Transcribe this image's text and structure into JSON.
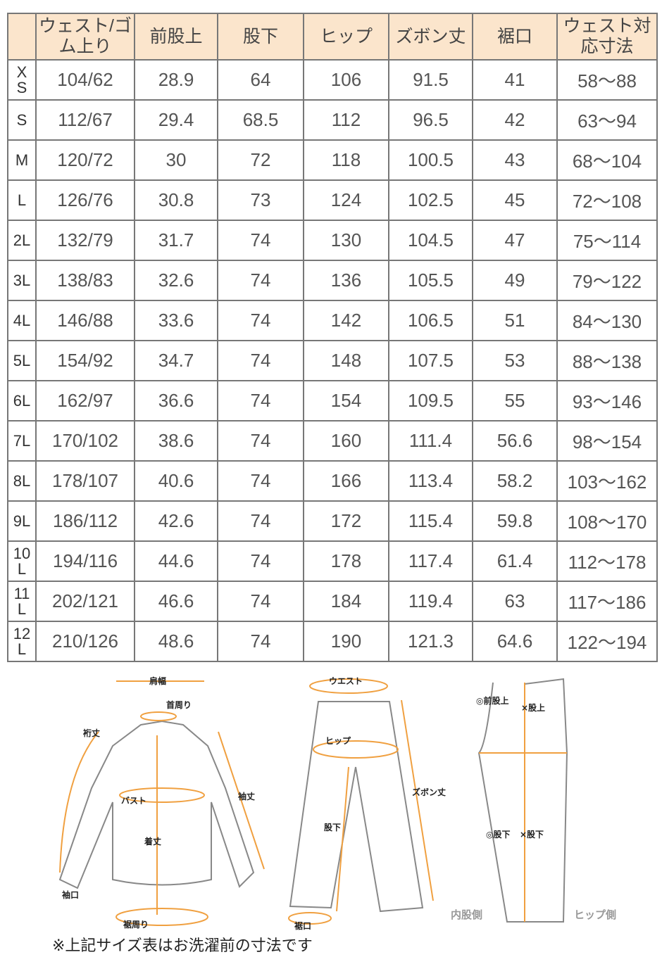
{
  "table": {
    "headers": [
      "",
      "ウェスト/ゴム上り",
      "前股上",
      "股下",
      "ヒップ",
      "ズボン丈",
      "裾口",
      "ウェスト対応寸法"
    ],
    "rows": [
      [
        "XS",
        "104/62",
        "28.9",
        "64",
        "106",
        "91.5",
        "41",
        "58〜88"
      ],
      [
        "S",
        "112/67",
        "29.4",
        "68.5",
        "112",
        "96.5",
        "42",
        "63〜94"
      ],
      [
        "M",
        "120/72",
        "30",
        "72",
        "118",
        "100.5",
        "43",
        "68〜104"
      ],
      [
        "L",
        "126/76",
        "30.8",
        "73",
        "124",
        "102.5",
        "45",
        "72〜108"
      ],
      [
        "2L",
        "132/79",
        "31.7",
        "74",
        "130",
        "104.5",
        "47",
        "75〜114"
      ],
      [
        "3L",
        "138/83",
        "32.6",
        "74",
        "136",
        "105.5",
        "49",
        "79〜122"
      ],
      [
        "4L",
        "146/88",
        "33.6",
        "74",
        "142",
        "106.5",
        "51",
        "84〜130"
      ],
      [
        "5L",
        "154/92",
        "34.7",
        "74",
        "148",
        "107.5",
        "53",
        "88〜138"
      ],
      [
        "6L",
        "162/97",
        "36.6",
        "74",
        "154",
        "109.5",
        "55",
        "93〜146"
      ],
      [
        "7L",
        "170/102",
        "38.6",
        "74",
        "160",
        "111.4",
        "56.6",
        "98〜154"
      ],
      [
        "8L",
        "178/107",
        "40.6",
        "74",
        "166",
        "113.4",
        "58.2",
        "103〜162"
      ],
      [
        "9L",
        "186/112",
        "42.6",
        "74",
        "172",
        "115.4",
        "59.8",
        "108〜170"
      ],
      [
        "10L",
        "194/116",
        "44.6",
        "74",
        "178",
        "117.4",
        "61.4",
        "112〜178"
      ],
      [
        "11L",
        "202/121",
        "46.6",
        "74",
        "184",
        "119.4",
        "63",
        "117〜186"
      ],
      [
        "12L",
        "210/126",
        "48.6",
        "74",
        "190",
        "121.3",
        "64.6",
        "122〜194"
      ]
    ]
  },
  "diagram": {
    "shirt": {
      "shoulder": "肩幅",
      "neck": "首周り",
      "yuki": "裄丈",
      "sleeve": "袖丈",
      "bust": "バスト",
      "length": "着丈",
      "cuff": "袖口",
      "hem": "裾周り"
    },
    "pants": {
      "waist": "ウエスト",
      "hip": "ヒップ",
      "inseam": "股下",
      "length": "ズボン丈",
      "hem": "裾口"
    },
    "side": {
      "front_rise": "◎前股上",
      "rise": "×股上",
      "inseam_inner": "◎股下",
      "inseam": "×股下",
      "inner_side": "内股側",
      "hip_side": "ヒップ側"
    }
  },
  "note": "※上記サイズ表はお洗濯前の寸法です",
  "colors": {
    "header_bg": "#fbe5cc",
    "accent": "#f0a040"
  }
}
